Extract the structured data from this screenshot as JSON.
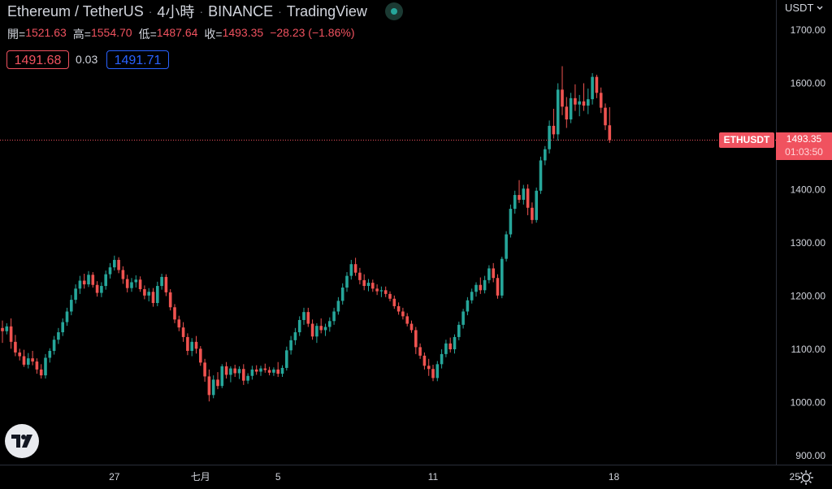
{
  "header": {
    "pair": "Ethereum / TetherUS",
    "interval": "4小時",
    "exchange": "BINANCE",
    "source": "TradingView",
    "sep": "·"
  },
  "ohlc": {
    "open_label": "開=",
    "open": "1521.63",
    "high_label": "高=",
    "high": "1554.70",
    "low_label": "低=",
    "low": "1487.64",
    "close_label": "收=",
    "close": "1493.35",
    "change": "−28.23 (−1.86%)"
  },
  "orderbook": {
    "sell": "1491.68",
    "spread": "0.03",
    "buy": "1491.71"
  },
  "price_axis": {
    "currency": "USDT",
    "dropdown_icon": "chevron-down-icon"
  },
  "last_price": {
    "symbol": "ETHUSDT",
    "price": "1493.35",
    "countdown": "01:03:50"
  },
  "colors": {
    "up": "#26a69a",
    "down": "#ef5350",
    "background": "#000000",
    "text": "#d1d4dc",
    "last_price": "#f0525f",
    "buy": "#2962ff"
  },
  "chart_data": {
    "type": "candlestick",
    "ylim": [
      900,
      1700
    ],
    "yticks": [
      900,
      1000,
      1100,
      1200,
      1300,
      1400,
      1500,
      1600,
      1700
    ],
    "ytick_labels": [
      "900.00",
      "1000.00",
      "1100.00",
      "1200.00",
      "1300.00",
      "1400.00",
      "1500.00",
      "1600.00",
      "1700.00"
    ],
    "xticks": [
      {
        "label": "27",
        "candle_index": 26
      },
      {
        "label": "七月",
        "candle_index": 46
      },
      {
        "label": "5",
        "candle_index": 64
      },
      {
        "label": "11",
        "candle_index": 100
      },
      {
        "label": "18",
        "candle_index": 142
      },
      {
        "label": "25",
        "candle_index": 184
      }
    ],
    "last_price": 1493.35,
    "candles": [
      [
        1140,
        1154,
        1112,
        1134
      ],
      [
        1134,
        1149,
        1128,
        1143
      ],
      [
        1143,
        1158,
        1101,
        1114
      ],
      [
        1114,
        1127,
        1087,
        1094
      ],
      [
        1094,
        1101,
        1079,
        1087
      ],
      [
        1087,
        1099,
        1067,
        1071
      ],
      [
        1071,
        1093,
        1064,
        1083
      ],
      [
        1083,
        1097,
        1070,
        1077
      ],
      [
        1077,
        1083,
        1054,
        1062
      ],
      [
        1062,
        1072,
        1045,
        1051
      ],
      [
        1051,
        1091,
        1045,
        1084
      ],
      [
        1084,
        1102,
        1075,
        1097
      ],
      [
        1097,
        1125,
        1090,
        1118
      ],
      [
        1118,
        1140,
        1110,
        1132
      ],
      [
        1132,
        1158,
        1125,
        1151
      ],
      [
        1151,
        1178,
        1144,
        1171
      ],
      [
        1171,
        1202,
        1164,
        1193
      ],
      [
        1193,
        1222,
        1186,
        1214
      ],
      [
        1214,
        1238,
        1204,
        1229
      ],
      [
        1229,
        1242,
        1214,
        1222
      ],
      [
        1222,
        1247,
        1217,
        1240
      ],
      [
        1240,
        1245,
        1216,
        1221
      ],
      [
        1221,
        1228,
        1199,
        1206
      ],
      [
        1206,
        1226,
        1198,
        1219
      ],
      [
        1219,
        1248,
        1212,
        1241
      ],
      [
        1241,
        1262,
        1233,
        1254
      ],
      [
        1254,
        1276,
        1248,
        1268
      ],
      [
        1268,
        1273,
        1243,
        1249
      ],
      [
        1249,
        1256,
        1223,
        1232
      ],
      [
        1232,
        1240,
        1207,
        1215
      ],
      [
        1215,
        1234,
        1208,
        1226
      ],
      [
        1226,
        1239,
        1216,
        1231
      ],
      [
        1231,
        1237,
        1208,
        1213
      ],
      [
        1213,
        1220,
        1194,
        1201
      ],
      [
        1201,
        1215,
        1190,
        1208
      ],
      [
        1208,
        1215,
        1180,
        1187
      ],
      [
        1187,
        1227,
        1181,
        1219
      ],
      [
        1219,
        1242,
        1212,
        1236
      ],
      [
        1236,
        1241,
        1200,
        1207
      ],
      [
        1207,
        1213,
        1173,
        1179
      ],
      [
        1179,
        1185,
        1149,
        1156
      ],
      [
        1156,
        1163,
        1134,
        1141
      ],
      [
        1141,
        1151,
        1114,
        1123
      ],
      [
        1123,
        1130,
        1089,
        1097
      ],
      [
        1097,
        1121,
        1087,
        1114
      ],
      [
        1114,
        1125,
        1092,
        1101
      ],
      [
        1101,
        1106,
        1069,
        1075
      ],
      [
        1075,
        1082,
        1039,
        1049
      ],
      [
        1049,
        1062,
        1002,
        1014
      ],
      [
        1014,
        1051,
        1008,
        1043
      ],
      [
        1043,
        1057,
        1025,
        1031
      ],
      [
        1031,
        1072,
        1027,
        1068
      ],
      [
        1068,
        1076,
        1045,
        1052
      ],
      [
        1052,
        1068,
        1038,
        1064
      ],
      [
        1064,
        1071,
        1048,
        1055
      ],
      [
        1055,
        1068,
        1044,
        1063
      ],
      [
        1063,
        1072,
        1033,
        1041
      ],
      [
        1041,
        1055,
        1035,
        1050
      ],
      [
        1050,
        1069,
        1043,
        1062
      ],
      [
        1062,
        1070,
        1052,
        1058
      ],
      [
        1058,
        1069,
        1050,
        1064
      ],
      [
        1064,
        1073,
        1056,
        1061
      ],
      [
        1061,
        1067,
        1051,
        1056
      ],
      [
        1056,
        1066,
        1050,
        1062
      ],
      [
        1062,
        1076,
        1048,
        1054
      ],
      [
        1054,
        1070,
        1048,
        1065
      ],
      [
        1065,
        1105,
        1060,
        1098
      ],
      [
        1098,
        1125,
        1090,
        1117
      ],
      [
        1117,
        1140,
        1108,
        1132
      ],
      [
        1132,
        1162,
        1125,
        1155
      ],
      [
        1155,
        1178,
        1146,
        1170
      ],
      [
        1170,
        1178,
        1142,
        1148
      ],
      [
        1148,
        1156,
        1118,
        1124
      ],
      [
        1124,
        1149,
        1112,
        1144
      ],
      [
        1144,
        1158,
        1130,
        1136
      ],
      [
        1136,
        1148,
        1125,
        1142
      ],
      [
        1142,
        1160,
        1133,
        1153
      ],
      [
        1153,
        1178,
        1146,
        1171
      ],
      [
        1171,
        1198,
        1165,
        1191
      ],
      [
        1191,
        1224,
        1184,
        1216
      ],
      [
        1216,
        1245,
        1208,
        1238
      ],
      [
        1238,
        1268,
        1231,
        1260
      ],
      [
        1260,
        1272,
        1238,
        1244
      ],
      [
        1244,
        1253,
        1222,
        1230
      ],
      [
        1230,
        1241,
        1211,
        1219
      ],
      [
        1219,
        1232,
        1209,
        1225
      ],
      [
        1225,
        1231,
        1208,
        1214
      ],
      [
        1214,
        1222,
        1202,
        1209
      ],
      [
        1209,
        1218,
        1198,
        1211
      ],
      [
        1211,
        1218,
        1198,
        1204
      ],
      [
        1204,
        1209,
        1190,
        1195
      ],
      [
        1195,
        1201,
        1176,
        1181
      ],
      [
        1181,
        1188,
        1165,
        1171
      ],
      [
        1171,
        1178,
        1156,
        1162
      ],
      [
        1162,
        1168,
        1143,
        1148
      ],
      [
        1148,
        1154,
        1131,
        1136
      ],
      [
        1136,
        1142,
        1091,
        1104
      ],
      [
        1104,
        1111,
        1082,
        1088
      ],
      [
        1088,
        1094,
        1062,
        1069
      ],
      [
        1069,
        1082,
        1050,
        1063
      ],
      [
        1063,
        1071,
        1040,
        1046
      ],
      [
        1046,
        1078,
        1040,
        1072
      ],
      [
        1072,
        1100,
        1064,
        1091
      ],
      [
        1091,
        1118,
        1085,
        1111
      ],
      [
        1111,
        1122,
        1094,
        1100
      ],
      [
        1100,
        1128,
        1092,
        1123
      ],
      [
        1123,
        1152,
        1117,
        1146
      ],
      [
        1146,
        1176,
        1139,
        1171
      ],
      [
        1171,
        1198,
        1164,
        1192
      ],
      [
        1192,
        1214,
        1186,
        1208
      ],
      [
        1208,
        1226,
        1199,
        1221
      ],
      [
        1221,
        1235,
        1204,
        1211
      ],
      [
        1211,
        1238,
        1205,
        1230
      ],
      [
        1230,
        1258,
        1224,
        1252
      ],
      [
        1252,
        1262,
        1226,
        1234
      ],
      [
        1234,
        1241,
        1195,
        1201
      ],
      [
        1201,
        1274,
        1196,
        1270
      ],
      [
        1270,
        1322,
        1265,
        1316
      ],
      [
        1316,
        1372,
        1310,
        1364
      ],
      [
        1364,
        1398,
        1355,
        1390
      ],
      [
        1390,
        1418,
        1375,
        1381
      ],
      [
        1381,
        1409,
        1372,
        1402
      ],
      [
        1402,
        1410,
        1352,
        1366
      ],
      [
        1366,
        1376,
        1336,
        1343
      ],
      [
        1343,
        1404,
        1338,
        1398
      ],
      [
        1398,
        1462,
        1392,
        1455
      ],
      [
        1455,
        1482,
        1446,
        1476
      ],
      [
        1476,
        1530,
        1468,
        1520
      ],
      [
        1520,
        1552,
        1496,
        1504
      ],
      [
        1504,
        1600,
        1492,
        1588
      ],
      [
        1588,
        1632,
        1540,
        1556
      ],
      [
        1556,
        1574,
        1516,
        1532
      ],
      [
        1532,
        1582,
        1525,
        1572
      ],
      [
        1572,
        1598,
        1548,
        1560
      ],
      [
        1560,
        1578,
        1538,
        1566
      ],
      [
        1566,
        1600,
        1548,
        1558
      ],
      [
        1558,
        1590,
        1542,
        1570
      ],
      [
        1570,
        1619,
        1560,
        1612
      ],
      [
        1612,
        1616,
        1572,
        1582
      ],
      [
        1582,
        1592,
        1544,
        1554
      ],
      [
        1554,
        1562,
        1512,
        1521
      ],
      [
        1521,
        1555,
        1488,
        1493
      ]
    ]
  }
}
